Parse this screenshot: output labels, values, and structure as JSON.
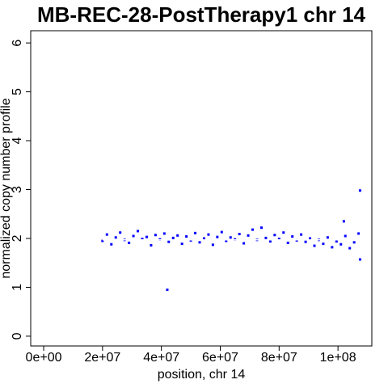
{
  "chart_data": {
    "type": "scatter",
    "title": "MB-REC-28-PostTherapy1 chr 14",
    "x_label": "position, chr 14",
    "y_label": "normalized copy number profile",
    "xlim": [
      -4400000,
      111500000
    ],
    "ylim": [
      -0.2,
      6.25
    ],
    "xticks": [
      {
        "value": 0,
        "label": "0e+00"
      },
      {
        "value": 20000000,
        "label": "2e+07"
      },
      {
        "value": 40000000,
        "label": "4e+07"
      },
      {
        "value": 60000000,
        "label": "6e+07"
      },
      {
        "value": 80000000,
        "label": "8e+07"
      },
      {
        "value": 100000000,
        "label": "1e+08"
      }
    ],
    "yticks": [
      0,
      1,
      2,
      3,
      4,
      5,
      6
    ],
    "color": "#0000ff",
    "x": [
      20000000,
      21500000,
      23000000,
      24500000,
      26000000,
      27500000,
      29000000,
      30500000,
      32000000,
      33500000,
      35000000,
      36500000,
      38000000,
      39500000,
      41000000,
      42500000,
      44000000,
      45500000,
      47000000,
      48500000,
      50000000,
      51500000,
      53000000,
      54500000,
      56000000,
      57500000,
      59000000,
      60500000,
      62000000,
      63500000,
      65000000,
      66500000,
      68000000,
      69500000,
      71000000,
      72500000,
      74000000,
      75500000,
      77000000,
      78500000,
      80000000,
      81500000,
      83000000,
      84500000,
      86000000,
      87500000,
      89000000,
      90500000,
      92000000,
      93500000,
      95000000,
      96500000,
      98000000,
      99500000,
      101000000,
      102500000,
      104000000,
      105500000,
      107000000,
      42000000,
      107500000,
      107500000,
      102000000
    ],
    "values": [
      1.95,
      2.08,
      1.88,
      2.02,
      2.12,
      1.97,
      1.91,
      2.05,
      2.15,
      1.99,
      2.03,
      1.86,
      2.07,
      1.98,
      2.1,
      1.93,
      2.01,
      2.06,
      1.89,
      2.04,
      1.96,
      2.11,
      1.92,
      2.0,
      2.08,
      1.87,
      2.03,
      2.13,
      1.95,
      2.02,
      1.98,
      2.09,
      1.9,
      2.06,
      2.18,
      1.97,
      2.22,
      2.01,
      1.94,
      2.07,
      1.99,
      2.12,
      1.91,
      2.04,
      1.96,
      2.08,
      1.93,
      2.0,
      1.85,
      1.97,
      1.89,
      2.02,
      1.82,
      1.94,
      1.88,
      2.05,
      1.8,
      1.92,
      2.1,
      0.95,
      2.98,
      1.57,
      2.35
    ],
    "segment": {
      "x": [
        20000000,
        107000000
      ],
      "values": [
        1.97,
        1.97
      ],
      "color": "#ffffff"
    }
  }
}
